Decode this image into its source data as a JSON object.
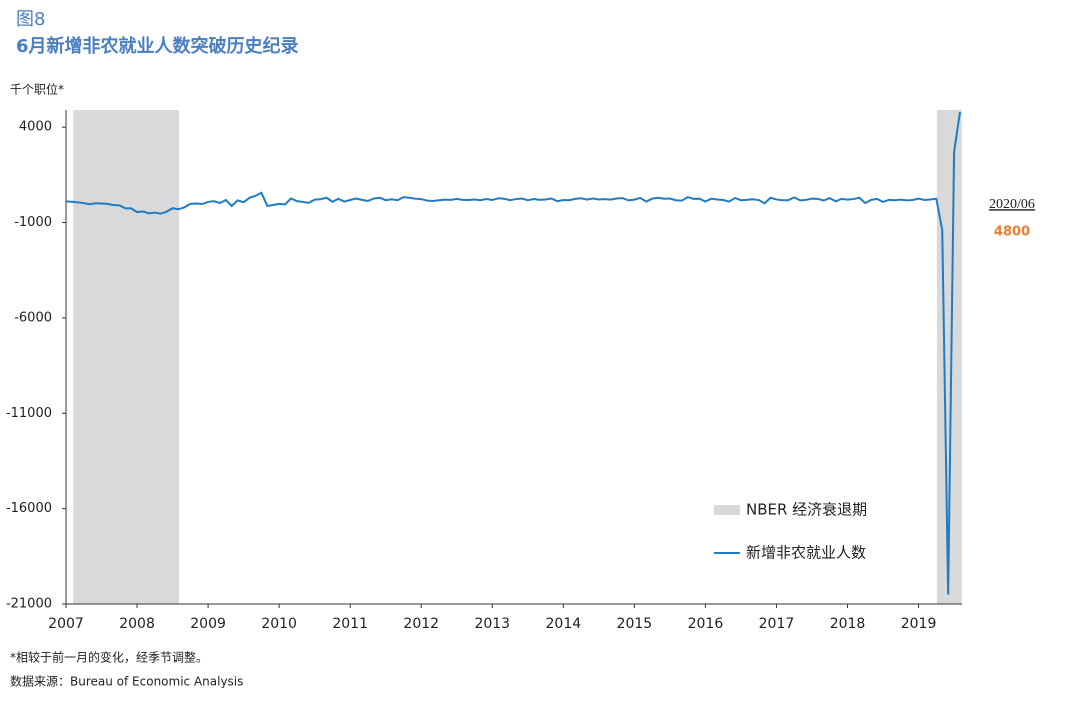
{
  "chart_data": {
    "type": "line",
    "title": "图8",
    "subtitle": "6月新增非农就业人数突破历史纪录",
    "y_label": "千个职位*",
    "notes": [
      "*相较于前一月的变化，经季节调整。",
      "数据来源：Bureau of Economic Analysis"
    ],
    "categories": [
      "2007",
      null,
      null,
      null,
      null,
      null,
      null,
      null,
      null,
      null,
      null,
      null,
      "2008",
      null,
      null,
      null,
      null,
      null,
      null,
      null,
      null,
      null,
      null,
      null,
      "2009",
      null,
      null,
      null,
      null,
      null,
      null,
      null,
      null,
      null,
      null,
      null,
      "2010",
      null,
      null,
      null,
      null,
      null,
      null,
      null,
      null,
      null,
      null,
      null,
      "2011",
      null,
      null,
      null,
      null,
      null,
      null,
      null,
      null,
      null,
      null,
      null,
      "2012",
      null,
      null,
      null,
      null,
      null,
      null,
      null,
      null,
      null,
      null,
      null,
      "2013",
      null,
      null,
      null,
      null,
      null,
      null,
      null,
      null,
      null,
      null,
      null,
      "2014",
      null,
      null,
      null,
      null,
      null,
      null,
      null,
      null,
      null,
      null,
      null,
      "2015",
      null,
      null,
      null,
      null,
      null,
      null,
      null,
      null,
      null,
      null,
      null,
      "2016",
      null,
      null,
      null,
      null,
      null,
      null,
      null,
      null,
      null,
      null,
      null,
      "2017",
      null,
      null,
      null,
      null,
      null,
      null,
      null,
      null,
      null,
      null,
      null,
      "2018",
      null,
      null,
      null,
      null,
      null,
      null,
      null,
      null,
      null,
      null,
      null,
      "2019",
      null,
      null,
      null,
      null,
      null,
      null,
      null
    ],
    "series": [
      {
        "name": "新增非农就业人数",
        "color": "#1f7cc4",
        "values": [
          100,
          90,
          60,
          20,
          -40,
          10,
          0,
          -20,
          -80,
          -100,
          -250,
          -260,
          -450,
          -420,
          -520,
          -480,
          -530,
          -430,
          -250,
          -300,
          -200,
          -20,
          0,
          -30,
          80,
          120,
          20,
          180,
          -130,
          160,
          60,
          300,
          400,
          560,
          -130,
          -80,
          -20,
          -50,
          260,
          120,
          80,
          30,
          200,
          220,
          300,
          90,
          240,
          100,
          180,
          260,
          190,
          130,
          260,
          300,
          170,
          220,
          170,
          330,
          300,
          250,
          230,
          150,
          130,
          170,
          200,
          190,
          240,
          190,
          180,
          210,
          170,
          230,
          180,
          270,
          250,
          170,
          230,
          260,
          170,
          230,
          190,
          210,
          260,
          120,
          180,
          170,
          240,
          270,
          200,
          260,
          210,
          230,
          200,
          260,
          280,
          160,
          200,
          290,
          100,
          250,
          300,
          250,
          260,
          170,
          150,
          330,
          240,
          250,
          100,
          250,
          210,
          180,
          100,
          290,
          170,
          190,
          220,
          180,
          10,
          300,
          210,
          170,
          170,
          320,
          160,
          190,
          250,
          240,
          160,
          280,
          110,
          240,
          200,
          230,
          300,
          20,
          190,
          240,
          80,
          190,
          170,
          200,
          160,
          180,
          250,
          180,
          210,
          250,
          -1400,
          -20500,
          2700,
          4800
        ]
      }
    ],
    "recession_label": "NBER 经济衰退期",
    "recession_color": "#d9d9d9",
    "recessions": [
      [
        1.2,
        19.1
      ],
      [
        147.1,
        151.3
      ]
    ],
    "annotation": "2020/06",
    "annotation_color": "#ed7d31",
    "ylim": [
      -21000,
      4900
    ],
    "yticks": [
      4000,
      -1000,
      -6000,
      -11000,
      -16000,
      -21000
    ]
  }
}
